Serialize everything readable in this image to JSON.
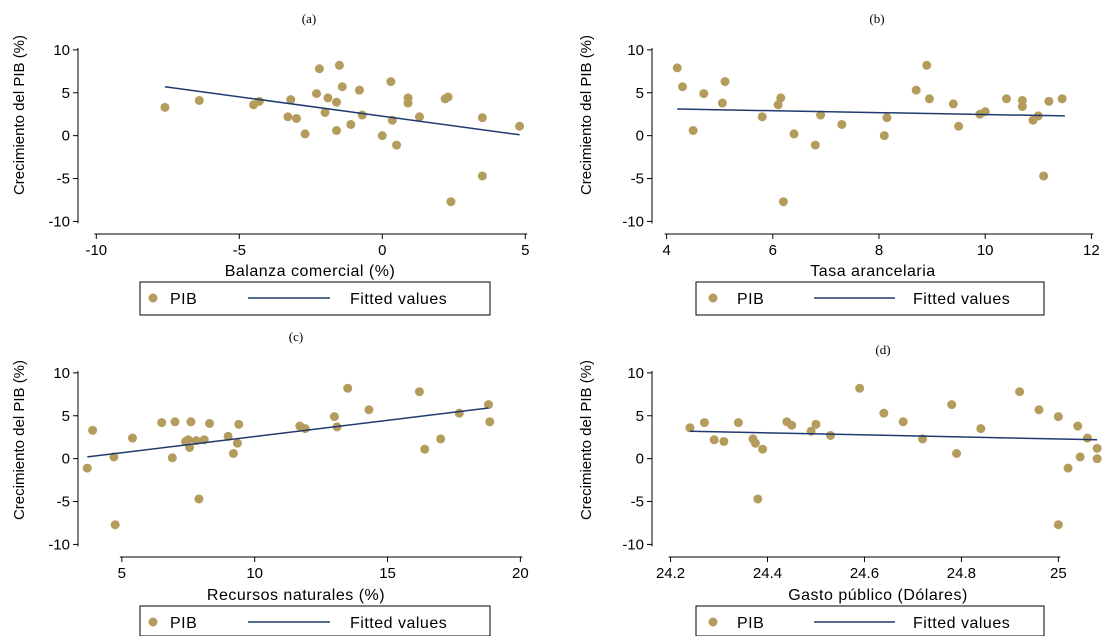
{
  "chart_data": [
    {
      "type": "scatter",
      "title": "(a)",
      "xlabel": "Balanza comercial (%)",
      "ylabel": "Crecimiento del PIB (%)",
      "xlim": [
        -10.5,
        5.2
      ],
      "ylim": [
        -11,
        11.5
      ],
      "xticks": [
        -10,
        -5,
        0,
        5
      ],
      "yticks": [
        -10,
        -5,
        0,
        5,
        10
      ],
      "series": [
        {
          "name": "PIB",
          "color": "#b39c5c",
          "points": [
            [
              -7.6,
              3.3
            ],
            [
              -6.4,
              4.1
            ],
            [
              -4.5,
              3.6
            ],
            [
              -4.3,
              4.0
            ],
            [
              -3.3,
              2.2
            ],
            [
              -3.2,
              4.2
            ],
            [
              -3.0,
              2.0
            ],
            [
              -2.7,
              0.2
            ],
            [
              -2.3,
              4.9
            ],
            [
              -2.2,
              7.8
            ],
            [
              -2.0,
              2.7
            ],
            [
              -1.9,
              4.4
            ],
            [
              -1.6,
              0.6
            ],
            [
              -1.6,
              3.9
            ],
            [
              -1.5,
              8.2
            ],
            [
              -1.4,
              5.7
            ],
            [
              -1.1,
              1.3
            ],
            [
              -0.8,
              5.3
            ],
            [
              -0.7,
              2.4
            ],
            [
              0.0,
              0.0
            ],
            [
              0.3,
              6.3
            ],
            [
              0.35,
              1.8
            ],
            [
              0.5,
              -1.1
            ],
            [
              0.9,
              4.4
            ],
            [
              0.9,
              3.8
            ],
            [
              1.3,
              2.2
            ],
            [
              2.2,
              4.3
            ],
            [
              2.3,
              4.5
            ],
            [
              2.4,
              -7.7
            ],
            [
              3.5,
              2.1
            ],
            [
              3.5,
              -4.7
            ],
            [
              4.8,
              1.1
            ]
          ]
        },
        {
          "name": "Fitted values",
          "color": "#1f3a6e",
          "line": [
            [
              -7.6,
              5.7
            ],
            [
              4.8,
              0.1
            ]
          ]
        }
      ]
    },
    {
      "type": "scatter",
      "title": "(b)",
      "xlabel": "Tasa arancelaria",
      "ylabel": "Crecimiento del PIB (%)",
      "xlim": [
        3.8,
        12.2
      ],
      "ylim": [
        -11,
        11.5
      ],
      "xticks": [
        4,
        6,
        8,
        10,
        12
      ],
      "yticks": [
        -10,
        -5,
        0,
        5,
        10
      ],
      "series": [
        {
          "name": "PIB",
          "color": "#b39c5c",
          "points": [
            [
              4.2,
              7.9
            ],
            [
              4.3,
              5.7
            ],
            [
              4.5,
              0.6
            ],
            [
              4.7,
              4.9
            ],
            [
              5.1,
              6.3
            ],
            [
              5.05,
              3.8
            ],
            [
              5.8,
              2.2
            ],
            [
              6.1,
              3.6
            ],
            [
              6.15,
              4.4
            ],
            [
              6.2,
              -7.7
            ],
            [
              6.4,
              0.2
            ],
            [
              6.9,
              2.4
            ],
            [
              6.8,
              -1.1
            ],
            [
              7.3,
              1.3
            ],
            [
              8.1,
              0.0
            ],
            [
              8.15,
              2.1
            ],
            [
              8.7,
              5.3
            ],
            [
              8.9,
              8.2
            ],
            [
              8.95,
              4.3
            ],
            [
              9.4,
              3.7
            ],
            [
              9.5,
              1.1
            ],
            [
              9.9,
              2.5
            ],
            [
              10.0,
              2.8
            ],
            [
              10.4,
              4.3
            ],
            [
              10.7,
              4.1
            ],
            [
              10.7,
              3.4
            ],
            [
              10.9,
              1.8
            ],
            [
              11.0,
              2.3
            ],
            [
              11.1,
              -4.7
            ],
            [
              11.2,
              4.0
            ],
            [
              11.45,
              4.3
            ]
          ]
        },
        {
          "name": "Fitted values",
          "color": "#1f3a6e",
          "line": [
            [
              4.2,
              3.1
            ],
            [
              11.5,
              2.3
            ]
          ]
        }
      ]
    },
    {
      "type": "scatter",
      "title": "(c)",
      "xlabel": "Recursos naturales (%)",
      "ylabel": "Crecimiento del PIB (%)",
      "xlim": [
        3.5,
        20.4
      ],
      "ylim": [
        -11,
        11.5
      ],
      "xticks": [
        5,
        10,
        15,
        20
      ],
      "yticks": [
        -10,
        -5,
        0,
        5,
        10
      ],
      "series": [
        {
          "name": "PIB",
          "color": "#b39c5c",
          "points": [
            [
              3.7,
              -1.1
            ],
            [
              3.9,
              3.3
            ],
            [
              4.7,
              0.2
            ],
            [
              4.75,
              -7.7
            ],
            [
              5.4,
              2.4
            ],
            [
              6.5,
              4.2
            ],
            [
              6.9,
              0.1
            ],
            [
              7.0,
              4.3
            ],
            [
              7.4,
              2.0
            ],
            [
              7.5,
              2.2
            ],
            [
              7.55,
              1.3
            ],
            [
              7.6,
              4.3
            ],
            [
              7.8,
              2.1
            ],
            [
              7.9,
              -4.7
            ],
            [
              8.1,
              2.2
            ],
            [
              8.3,
              4.1
            ],
            [
              9.0,
              2.6
            ],
            [
              9.2,
              0.6
            ],
            [
              9.35,
              1.8
            ],
            [
              9.4,
              4.0
            ],
            [
              11.7,
              3.8
            ],
            [
              11.9,
              3.5
            ],
            [
              13.0,
              4.9
            ],
            [
              13.1,
              3.7
            ],
            [
              13.5,
              8.2
            ],
            [
              14.3,
              5.7
            ],
            [
              16.2,
              7.8
            ],
            [
              16.4,
              1.1
            ],
            [
              17.0,
              2.3
            ],
            [
              17.7,
              5.3
            ],
            [
              18.8,
              6.3
            ],
            [
              18.85,
              4.3
            ]
          ]
        },
        {
          "name": "Fitted values",
          "color": "#1f3a6e",
          "line": [
            [
              3.7,
              0.2
            ],
            [
              18.8,
              5.9
            ]
          ]
        }
      ]
    },
    {
      "type": "scatter",
      "title": "(d)",
      "xlabel": "Gasto público (Dólares)",
      "ylabel": "Crecimiento del PIB (%)",
      "xlim": [
        24.17,
        25.09
      ],
      "ylim": [
        -11,
        11.5
      ],
      "xticks": [
        24.2,
        24.4,
        24.6,
        24.8,
        25
      ],
      "yticks": [
        -10,
        -5,
        0,
        5,
        10
      ],
      "series": [
        {
          "name": "PIB",
          "color": "#b39c5c",
          "points": [
            [
              24.24,
              3.6
            ],
            [
              24.27,
              4.2
            ],
            [
              24.29,
              2.2
            ],
            [
              24.31,
              2.0
            ],
            [
              24.34,
              4.2
            ],
            [
              24.37,
              2.3
            ],
            [
              24.375,
              1.8
            ],
            [
              24.38,
              -4.7
            ],
            [
              24.39,
              1.1
            ],
            [
              24.44,
              4.3
            ],
            [
              24.45,
              3.9
            ],
            [
              24.49,
              3.2
            ],
            [
              24.5,
              4.0
            ],
            [
              24.53,
              2.7
            ],
            [
              24.59,
              8.2
            ],
            [
              24.64,
              5.3
            ],
            [
              24.68,
              4.3
            ],
            [
              24.72,
              2.3
            ],
            [
              24.78,
              6.3
            ],
            [
              24.79,
              0.6
            ],
            [
              24.84,
              3.5
            ],
            [
              24.92,
              7.8
            ],
            [
              24.96,
              5.7
            ],
            [
              25.0,
              4.9
            ],
            [
              25.0,
              -7.7
            ],
            [
              25.02,
              -1.1
            ],
            [
              25.04,
              3.8
            ],
            [
              25.045,
              0.2
            ],
            [
              25.06,
              2.4
            ],
            [
              25.08,
              1.2
            ],
            [
              25.08,
              0.0
            ]
          ]
        },
        {
          "name": "Fitted values",
          "color": "#1f3a6e",
          "line": [
            [
              24.24,
              3.2
            ],
            [
              25.08,
              2.2
            ]
          ]
        }
      ]
    }
  ],
  "legend": {
    "dot_label": "PIB",
    "line_label": "Fitted values"
  }
}
